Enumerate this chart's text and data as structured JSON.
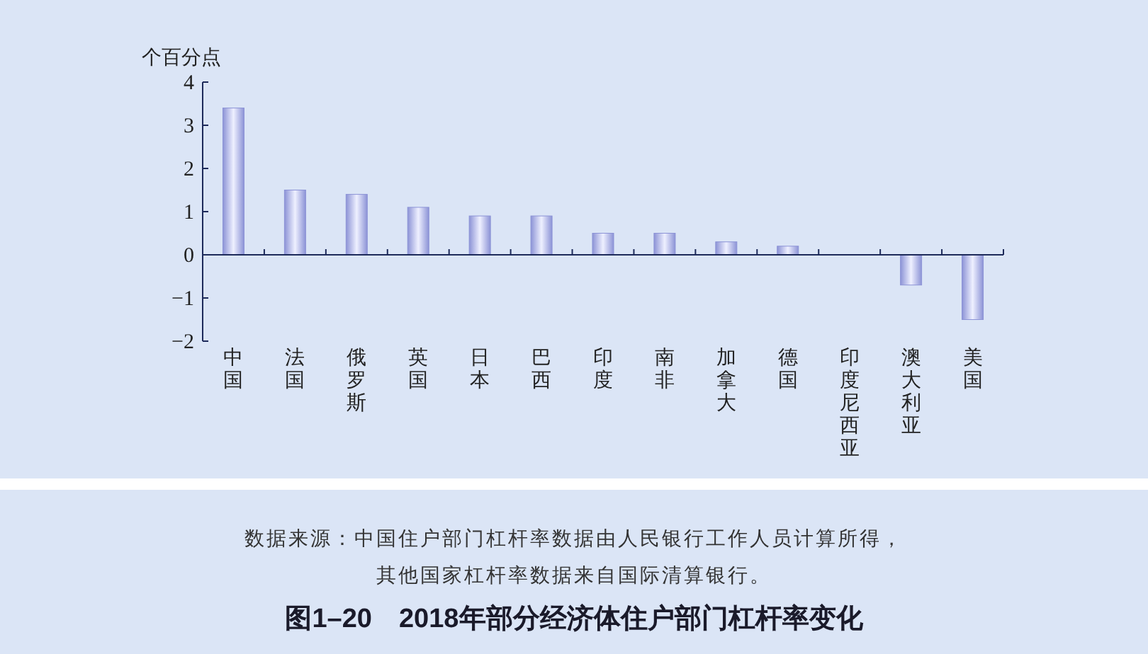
{
  "chart_data": {
    "type": "bar",
    "title": "图1–20　2018年部分经济体住户部门杠杆率变化",
    "ylabel": "个百分点",
    "annotations": [
      "数据来源：中国住户部门杠杆率数据由人民银行工作人员计算所得，",
      "其他国家杠杆率数据来自国际清算银行。"
    ],
    "categories": [
      "中国",
      "法国",
      "俄罗斯",
      "英国",
      "日本",
      "巴西",
      "印度",
      "南非",
      "加拿大",
      "德国",
      "印度尼西亚",
      "澳大利亚",
      "美国"
    ],
    "values": [
      3.4,
      1.5,
      1.4,
      1.1,
      0.9,
      0.9,
      0.5,
      0.5,
      0.3,
      0.2,
      0,
      -0.7,
      -1.5
    ],
    "color": "#8c93d6",
    "ylim": [
      -2,
      4
    ],
    "yticks": [
      -2,
      -1,
      0,
      1,
      2,
      3,
      4
    ]
  }
}
